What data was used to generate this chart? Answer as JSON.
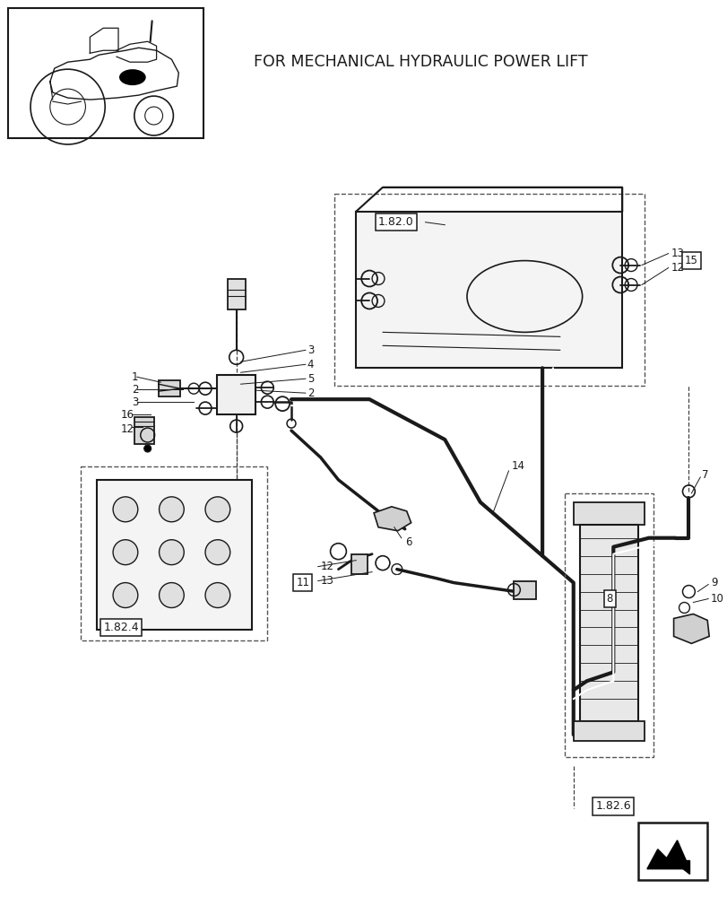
{
  "title": "FOR MECHANICAL HYDRAULIC POWER LIFT",
  "bg_color": "#ffffff",
  "line_color": "#1a1a1a",
  "fig_w": 8.12,
  "fig_h": 10.0,
  "dpi": 100
}
